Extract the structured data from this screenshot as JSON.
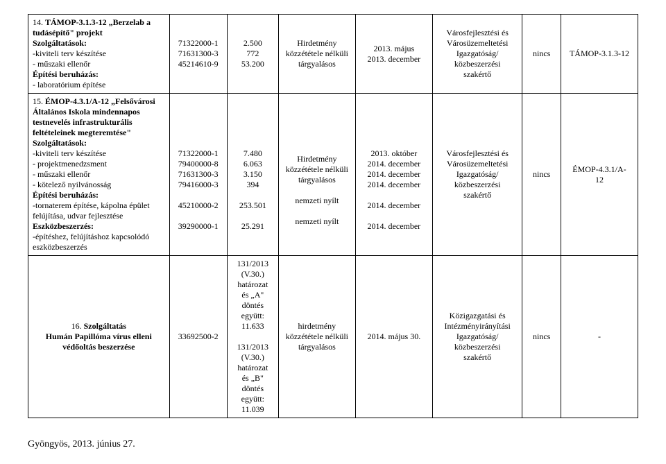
{
  "rows": [
    {
      "num": "14.",
      "title": "TÁMOP-3.1.3-12 „Berzelab a tudásépítő\" projekt",
      "sections": [
        {
          "heading": "Szolgáltatások:",
          "lines": [
            "-kiviteli terv készítése",
            "- műszaki ellenőr"
          ]
        },
        {
          "heading": "Építési beruházás:",
          "lines": [
            "- laboratórium építése"
          ]
        }
      ],
      "codes": [
        "71322000-1",
        "71631300-3",
        "",
        "45214610-9"
      ],
      "amounts": [
        "2.500",
        "772",
        "",
        "53.200"
      ],
      "procedure": [
        "Hirdetmény",
        "közzététele nélküli",
        "tárgyalásos"
      ],
      "dates": [
        "2013. május",
        "",
        "2013. december"
      ],
      "org": [
        "Városfejlesztési és",
        "Városüzemeltetési",
        "Igazgatóság/",
        "közbeszerzési",
        "szakértő"
      ],
      "nincs": "nincs",
      "ref": "TÁMOP-3.1.3-12"
    },
    {
      "num": "15.",
      "title": "ÉMOP-4.3.1/A-12 „Felsővárosi Általános Iskola mindennapos testnevelés infrastrukturális feltételeinek megteremtése\"",
      "sections": [
        {
          "heading": "Szolgáltatások:",
          "lines": [
            "-kiviteli terv készítése",
            "- projektmenedzsment",
            "- műszaki ellenőr",
            "- kötelező nyilvánosság"
          ]
        },
        {
          "heading": "Építési beruházás:",
          "lines": [
            "-tornaterem építése, kápolna épület felújítása, udvar fejlesztése"
          ]
        },
        {
          "heading": "Eszközbeszerzés:",
          "lines": [
            "-építéshez, felújításhoz kapcsolódó eszközbeszerzés"
          ]
        }
      ],
      "codes": [
        "71322000-1",
        "79400000-8",
        "71631300-3",
        "79416000-3",
        "",
        "45210000-2",
        "",
        "39290000-1"
      ],
      "amounts": [
        "7.480",
        "6.063",
        "3.150",
        "394",
        "",
        "253.501",
        "",
        "25.291"
      ],
      "procedure": [
        "Hirdetmény",
        "közzététele nélküli",
        "tárgyalásos",
        "",
        "nemzeti nyílt",
        "",
        "nemzeti nyílt"
      ],
      "dates": [
        "2013. október",
        "2014. december",
        "2014. december",
        "2014. december",
        "",
        "2014. december",
        "",
        "2014. december"
      ],
      "org": [
        "Városfejlesztési és",
        "Városüzemeltetési",
        "Igazgatóság/",
        "közbeszerzési",
        "szakértő"
      ],
      "nincs": "nincs",
      "ref_lines": [
        "ÉMOP-4.3.1/A-",
        "12"
      ]
    },
    {
      "num": "16.",
      "title": "Szolgáltatás",
      "subtitle": "Humán Papillóma vírus elleni védőoltás beszerzése",
      "codes": [
        "33692500-2"
      ],
      "amounts_lines": [
        "131/2013",
        "(V.30.)",
        "határozat",
        "és „A\"",
        "döntés",
        "együtt:",
        "11.633",
        "",
        "131/2013",
        "(V.30.)",
        "határozat",
        "és „B\"",
        "döntés",
        "együtt:",
        "11.039"
      ],
      "procedure": [
        "hirdetmény",
        "közzététele nélküli",
        "tárgyalásos"
      ],
      "dates": [
        "2014. május 30."
      ],
      "org": [
        "Közigazgatási és",
        "Intézményirányítási",
        "Igazgatóság/",
        "közbeszerzési",
        "szakértő"
      ],
      "nincs": "nincs",
      "ref": "-"
    }
  ],
  "footer": "Gyöngyös, 2013. június 27."
}
